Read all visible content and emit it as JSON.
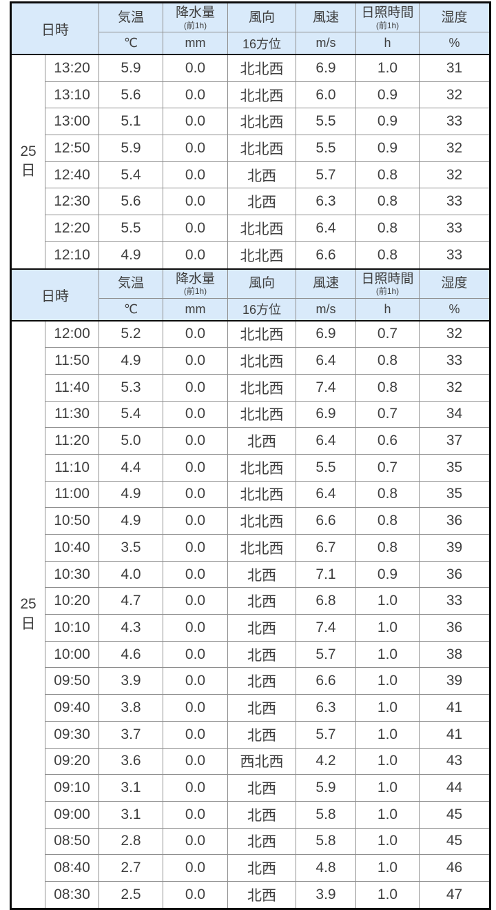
{
  "colors": {
    "header_bg": "#d9eafa",
    "thick_border": "#0a0a0a",
    "thin_border": "#8e8e8e",
    "text": "#3f3f3f",
    "row_bg": "#ffffff"
  },
  "header": {
    "datetime_label": "日時",
    "columns": [
      {
        "label": "気温",
        "sub": "",
        "unit": "℃"
      },
      {
        "label": "降水量",
        "sub": "(前1h)",
        "unit": "mm"
      },
      {
        "label": "風向",
        "sub": "",
        "unit": "16方位"
      },
      {
        "label": "風速",
        "sub": "",
        "unit": "m/s"
      },
      {
        "label": "日照時間",
        "sub": "(前1h)",
        "unit": "h"
      },
      {
        "label": "湿度",
        "sub": "",
        "unit": "%"
      }
    ]
  },
  "sections": [
    {
      "day": "25日",
      "rows": [
        [
          "13:20",
          "5.9",
          "0.0",
          "北北西",
          "6.9",
          "1.0",
          "31"
        ],
        [
          "13:10",
          "5.6",
          "0.0",
          "北北西",
          "6.0",
          "0.9",
          "32"
        ],
        [
          "13:00",
          "5.1",
          "0.0",
          "北北西",
          "5.5",
          "0.9",
          "33"
        ],
        [
          "12:50",
          "5.9",
          "0.0",
          "北北西",
          "5.5",
          "0.9",
          "32"
        ],
        [
          "12:40",
          "5.4",
          "0.0",
          "北西",
          "5.7",
          "0.8",
          "32"
        ],
        [
          "12:30",
          "5.6",
          "0.0",
          "北西",
          "6.3",
          "0.8",
          "33"
        ],
        [
          "12:20",
          "5.5",
          "0.0",
          "北北西",
          "6.4",
          "0.8",
          "33"
        ],
        [
          "12:10",
          "4.9",
          "0.0",
          "北北西",
          "6.6",
          "0.8",
          "33"
        ]
      ]
    },
    {
      "day": "25日",
      "rows": [
        [
          "12:00",
          "5.2",
          "0.0",
          "北北西",
          "6.9",
          "0.7",
          "32"
        ],
        [
          "11:50",
          "4.9",
          "0.0",
          "北北西",
          "6.4",
          "0.8",
          "33"
        ],
        [
          "11:40",
          "5.3",
          "0.0",
          "北北西",
          "7.4",
          "0.8",
          "32"
        ],
        [
          "11:30",
          "5.4",
          "0.0",
          "北北西",
          "6.9",
          "0.7",
          "34"
        ],
        [
          "11:20",
          "5.0",
          "0.0",
          "北西",
          "6.4",
          "0.6",
          "37"
        ],
        [
          "11:10",
          "4.4",
          "0.0",
          "北北西",
          "5.5",
          "0.7",
          "35"
        ],
        [
          "11:00",
          "4.9",
          "0.0",
          "北北西",
          "6.4",
          "0.8",
          "35"
        ],
        [
          "10:50",
          "4.9",
          "0.0",
          "北北西",
          "6.6",
          "0.8",
          "36"
        ],
        [
          "10:40",
          "3.5",
          "0.0",
          "北北西",
          "6.7",
          "0.8",
          "39"
        ],
        [
          "10:30",
          "4.0",
          "0.0",
          "北西",
          "7.1",
          "0.9",
          "36"
        ],
        [
          "10:20",
          "4.7",
          "0.0",
          "北西",
          "6.8",
          "1.0",
          "33"
        ],
        [
          "10:10",
          "4.3",
          "0.0",
          "北西",
          "7.4",
          "1.0",
          "36"
        ],
        [
          "10:00",
          "4.6",
          "0.0",
          "北西",
          "5.7",
          "1.0",
          "38"
        ],
        [
          "09:50",
          "3.9",
          "0.0",
          "北西",
          "6.6",
          "1.0",
          "39"
        ],
        [
          "09:40",
          "3.8",
          "0.0",
          "北西",
          "6.3",
          "1.0",
          "41"
        ],
        [
          "09:30",
          "3.7",
          "0.0",
          "北西",
          "5.7",
          "1.0",
          "41"
        ],
        [
          "09:20",
          "3.6",
          "0.0",
          "西北西",
          "4.2",
          "1.0",
          "43"
        ],
        [
          "09:10",
          "3.1",
          "0.0",
          "北西",
          "5.9",
          "1.0",
          "44"
        ],
        [
          "09:00",
          "3.1",
          "0.0",
          "北西",
          "5.8",
          "1.0",
          "45"
        ],
        [
          "08:50",
          "2.8",
          "0.0",
          "北西",
          "5.8",
          "1.0",
          "45"
        ],
        [
          "08:40",
          "2.7",
          "0.0",
          "北西",
          "4.8",
          "1.0",
          "46"
        ],
        [
          "08:30",
          "2.5",
          "0.0",
          "北西",
          "3.9",
          "1.0",
          "47"
        ]
      ]
    }
  ]
}
